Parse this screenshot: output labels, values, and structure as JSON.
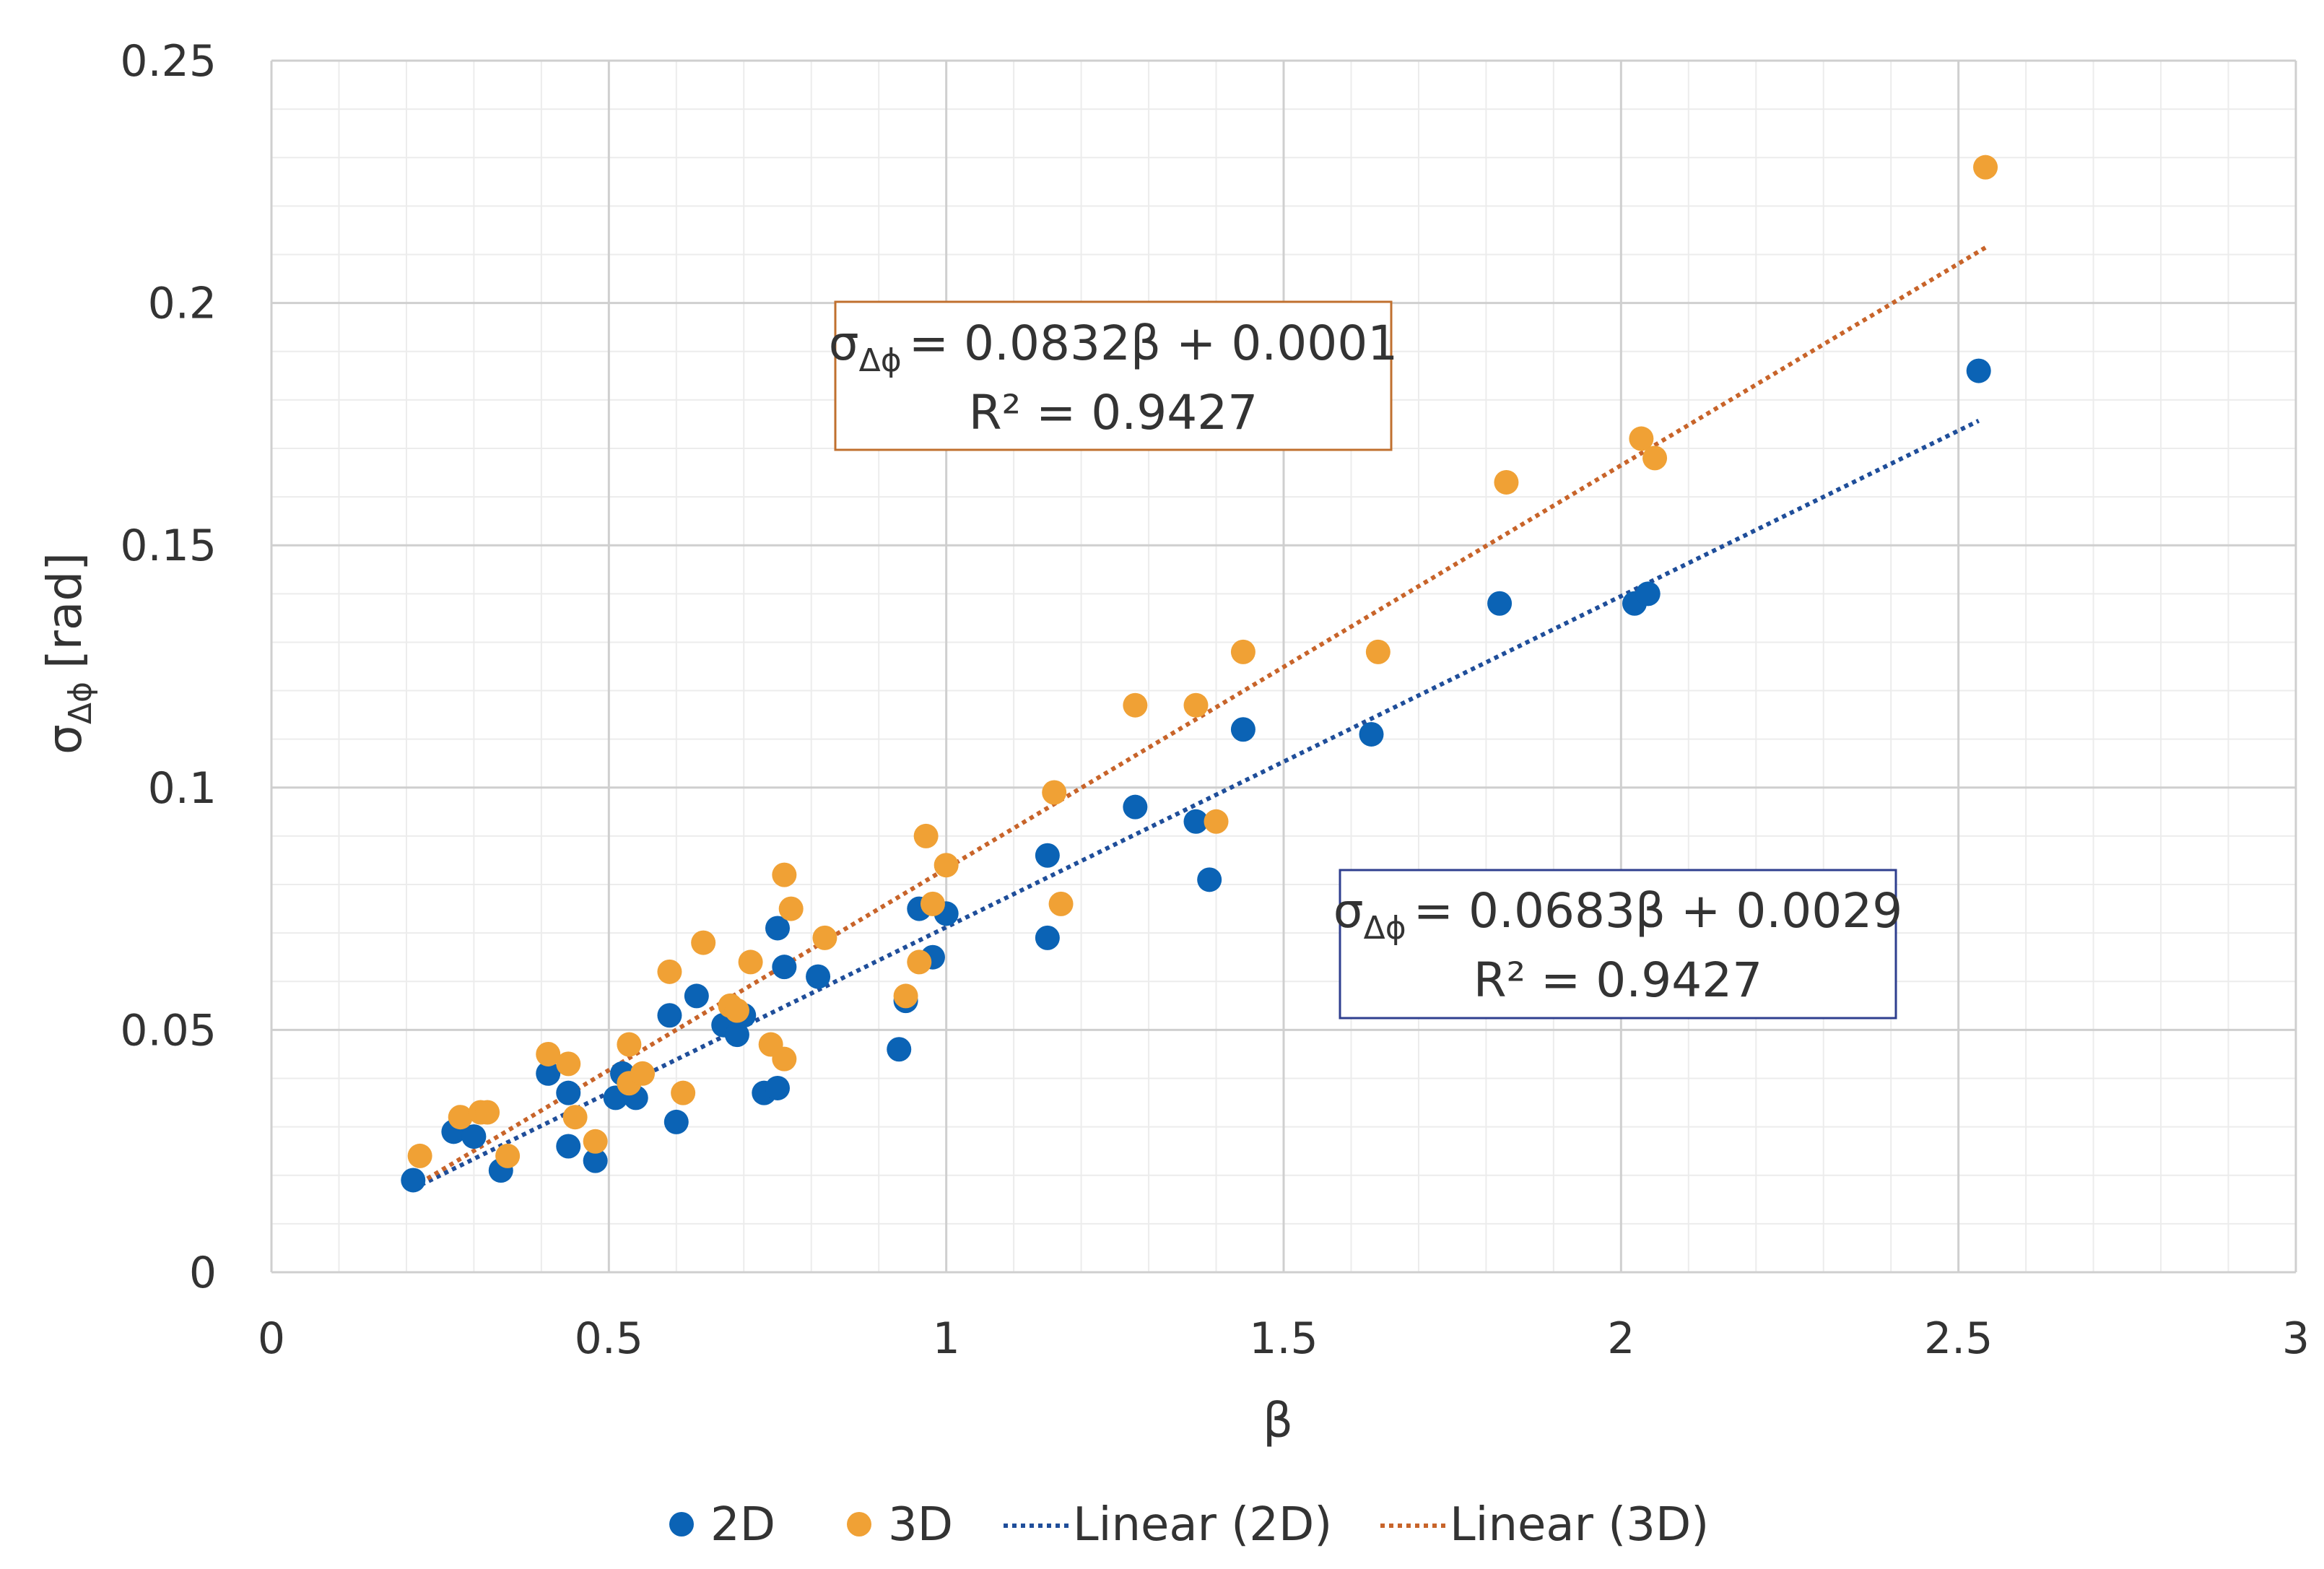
{
  "chart_data": {
    "type": "scatter",
    "title": "",
    "xlabel": "β",
    "ylabel": "σ",
    "ylabel_sub": "Δϕ",
    "ylabel_unit": "[rad]",
    "xlim": [
      0,
      3
    ],
    "ylim": [
      0,
      0.25
    ],
    "x_major_step": 0.5,
    "y_major_step": 0.05,
    "x_minor_step": 0.1,
    "y_minor_step": 0.01,
    "x_ticks": [
      "0",
      "0.5",
      "1",
      "1.5",
      "2",
      "2.5",
      "3"
    ],
    "y_ticks": [
      "0",
      "0.05",
      "0.1",
      "0.15",
      "0.2",
      "0.25"
    ],
    "grid": true,
    "legend_position": "bottom",
    "series": [
      {
        "name": "2D",
        "color": "#0B63B5",
        "points": [
          [
            0.21,
            0.019
          ],
          [
            0.27,
            0.029
          ],
          [
            0.3,
            0.028
          ],
          [
            0.34,
            0.021
          ],
          [
            0.41,
            0.041
          ],
          [
            0.44,
            0.026
          ],
          [
            0.44,
            0.037
          ],
          [
            0.48,
            0.023
          ],
          [
            0.51,
            0.036
          ],
          [
            0.52,
            0.041
          ],
          [
            0.54,
            0.036
          ],
          [
            0.59,
            0.053
          ],
          [
            0.6,
            0.031
          ],
          [
            0.63,
            0.057
          ],
          [
            0.67,
            0.051
          ],
          [
            0.69,
            0.049
          ],
          [
            0.7,
            0.053
          ],
          [
            0.73,
            0.037
          ],
          [
            0.75,
            0.071
          ],
          [
            0.75,
            0.038
          ],
          [
            0.76,
            0.063
          ],
          [
            0.81,
            0.061
          ],
          [
            0.93,
            0.046
          ],
          [
            0.94,
            0.056
          ],
          [
            0.96,
            0.075
          ],
          [
            0.98,
            0.065
          ],
          [
            1.0,
            0.074
          ],
          [
            1.15,
            0.086
          ],
          [
            1.15,
            0.069
          ],
          [
            1.28,
            0.096
          ],
          [
            1.37,
            0.093
          ],
          [
            1.39,
            0.081
          ],
          [
            1.44,
            0.112
          ],
          [
            1.63,
            0.111
          ],
          [
            1.82,
            0.138
          ],
          [
            2.02,
            0.138
          ],
          [
            2.04,
            0.14
          ],
          [
            2.53,
            0.186
          ]
        ]
      },
      {
        "name": "3D",
        "color": "#F0A135",
        "points": [
          [
            0.22,
            0.024
          ],
          [
            0.28,
            0.032
          ],
          [
            0.31,
            0.033
          ],
          [
            0.32,
            0.033
          ],
          [
            0.35,
            0.024
          ],
          [
            0.41,
            0.045
          ],
          [
            0.44,
            0.043
          ],
          [
            0.45,
            0.032
          ],
          [
            0.48,
            0.027
          ],
          [
            0.53,
            0.047
          ],
          [
            0.53,
            0.039
          ],
          [
            0.55,
            0.041
          ],
          [
            0.59,
            0.062
          ],
          [
            0.61,
            0.037
          ],
          [
            0.64,
            0.068
          ],
          [
            0.68,
            0.055
          ],
          [
            0.69,
            0.054
          ],
          [
            0.71,
            0.064
          ],
          [
            0.74,
            0.047
          ],
          [
            0.76,
            0.082
          ],
          [
            0.76,
            0.044
          ],
          [
            0.77,
            0.075
          ],
          [
            0.82,
            0.069
          ],
          [
            0.94,
            0.057
          ],
          [
            0.96,
            0.064
          ],
          [
            0.97,
            0.09
          ],
          [
            0.98,
            0.076
          ],
          [
            1.0,
            0.084
          ],
          [
            1.16,
            0.099
          ],
          [
            1.17,
            0.076
          ],
          [
            1.28,
            0.117
          ],
          [
            1.37,
            0.117
          ],
          [
            1.4,
            0.093
          ],
          [
            1.44,
            0.128
          ],
          [
            1.64,
            0.128
          ],
          [
            1.83,
            0.163
          ],
          [
            2.03,
            0.172
          ],
          [
            2.05,
            0.168
          ],
          [
            2.54,
            0.228
          ]
        ]
      }
    ],
    "trendlines": [
      {
        "name": "Linear (2D)",
        "color": "#1F4E9A",
        "slope": 0.0683,
        "intercept": 0.0029,
        "x_range": [
          0.21,
          2.53
        ],
        "equation_label": "= 0.0683β + 0.0029",
        "r2_label": "R² = 0.9427",
        "box_border": "#2F3F8F",
        "box_anchor": "center-right"
      },
      {
        "name": "Linear (3D)",
        "color": "#C8642A",
        "slope": 0.0832,
        "intercept": 0.0001,
        "x_range": [
          0.22,
          2.54
        ],
        "equation_label": "= 0.0832β + 0.0001",
        "r2_label": "R² = 0.9427",
        "box_border": "#C0702F",
        "box_anchor": "top-center"
      }
    ],
    "equation_symbol": "σ",
    "equation_symbol_sub": "Δϕ"
  }
}
